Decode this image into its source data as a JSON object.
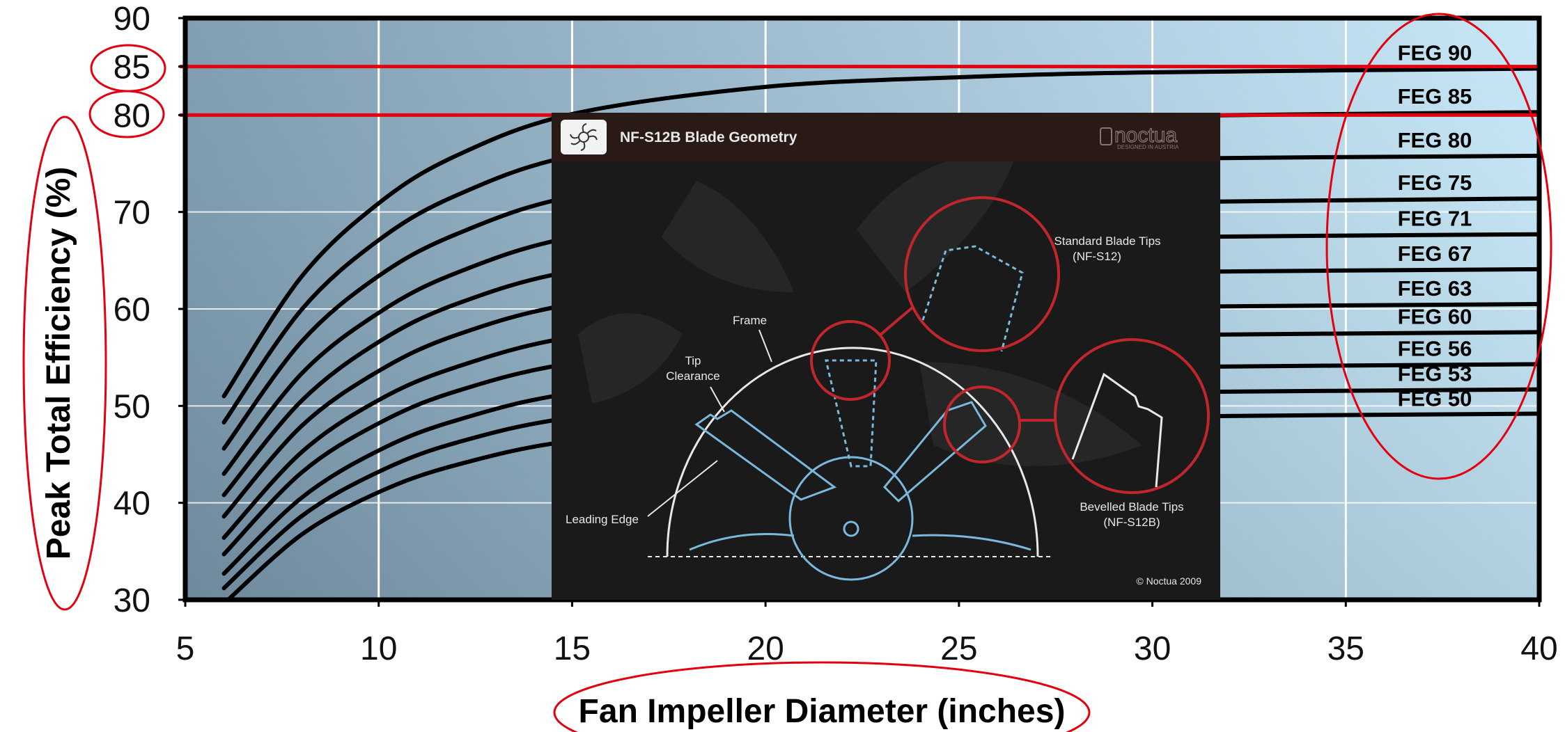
{
  "chart_data": {
    "type": "line",
    "title": "",
    "xlabel": "Fan Impeller Diameter (inches)",
    "ylabel": "Peak Total Efficiency (%)",
    "xlim": [
      5,
      40
    ],
    "ylim": [
      30,
      90
    ],
    "x_ticks": [
      "5",
      "10",
      "15",
      "20",
      "25",
      "30",
      "35",
      "40"
    ],
    "y_ticks": [
      "30",
      "40",
      "50",
      "60",
      "70",
      "80",
      "85",
      "90"
    ],
    "grid": true,
    "legend": "right (direct labels)",
    "colors": {
      "plot_bg_left": "#7a98ad",
      "plot_bg_right": "#c4e6f7",
      "series_line": "#000000",
      "highlight": "#e3000f",
      "grid": "#ffffff"
    },
    "reference_lines": [
      {
        "label": "85",
        "y": 85
      },
      {
        "label": "80",
        "y": 80
      }
    ],
    "series": [
      {
        "name": "FEG 90",
        "x": [
          6,
          8,
          10,
          12,
          15,
          20,
          25,
          30,
          40
        ],
        "values": [
          51.0,
          63.3,
          70.9,
          75.8,
          80.1,
          82.9,
          83.9,
          84.4,
          84.8
        ]
      },
      {
        "name": "FEG 85",
        "values": [
          48.3,
          59.9,
          67.1,
          71.7,
          75.8,
          78.5,
          79.5,
          79.9,
          80.3
        ]
      },
      {
        "name": "FEG 80",
        "values": [
          45.6,
          56.6,
          63.4,
          67.7,
          71.6,
          74.1,
          75.1,
          75.5,
          75.8
        ]
      },
      {
        "name": "FEG 75",
        "values": [
          43.0,
          53.3,
          59.6,
          63.7,
          67.4,
          69.8,
          70.6,
          71.0,
          71.4
        ]
      },
      {
        "name": "FEG 71",
        "values": [
          40.8,
          50.5,
          56.6,
          60.5,
          63.9,
          66.2,
          67.0,
          67.4,
          67.7
        ]
      },
      {
        "name": "FEG 67",
        "values": [
          38.6,
          47.9,
          53.6,
          57.3,
          60.5,
          62.7,
          63.4,
          63.8,
          64.1
        ]
      },
      {
        "name": "FEG 63",
        "values": [
          36.4,
          45.2,
          50.6,
          54.0,
          57.1,
          59.1,
          59.8,
          60.2,
          60.5
        ]
      },
      {
        "name": "FEG 60",
        "values": [
          34.7,
          43.1,
          48.2,
          51.5,
          54.4,
          56.3,
          57.0,
          57.3,
          57.6
        ]
      },
      {
        "name": "FEG 56",
        "values": [
          32.7,
          40.5,
          45.4,
          48.5,
          51.3,
          53.0,
          53.7,
          54.0,
          54.3
        ]
      },
      {
        "name": "FEG 53",
        "values": [
          31.2,
          38.6,
          43.2,
          46.2,
          48.8,
          50.5,
          51.1,
          51.4,
          51.7
        ]
      },
      {
        "name": "FEG 50",
        "values": [
          29.6,
          36.7,
          41.1,
          43.9,
          46.4,
          48.0,
          48.6,
          48.9,
          49.2
        ]
      }
    ]
  },
  "inset": {
    "title": "NF-S12B Blade Geometry",
    "brand": "noctua",
    "brand_sub": "DESIGNED IN AUSTRIA",
    "labels": {
      "frame": "Frame",
      "tip_clearance_1": "Tip",
      "tip_clearance_2": "Clearance",
      "leading_edge": "Leading Edge",
      "standard_tips_1": "Standard Blade Tips",
      "standard_tips_2": "(NF-S12)",
      "bevelled_tips_1": "Bevelled Blade Tips",
      "bevelled_tips_2": "(NF-S12B)",
      "copyright": "© Noctua 2009"
    },
    "colors": {
      "background": "#1a1a1a",
      "header": "#2a1a16",
      "blade": "#7ab8dc",
      "circle": "#c0262c",
      "frame": "#e8e8e8"
    }
  }
}
